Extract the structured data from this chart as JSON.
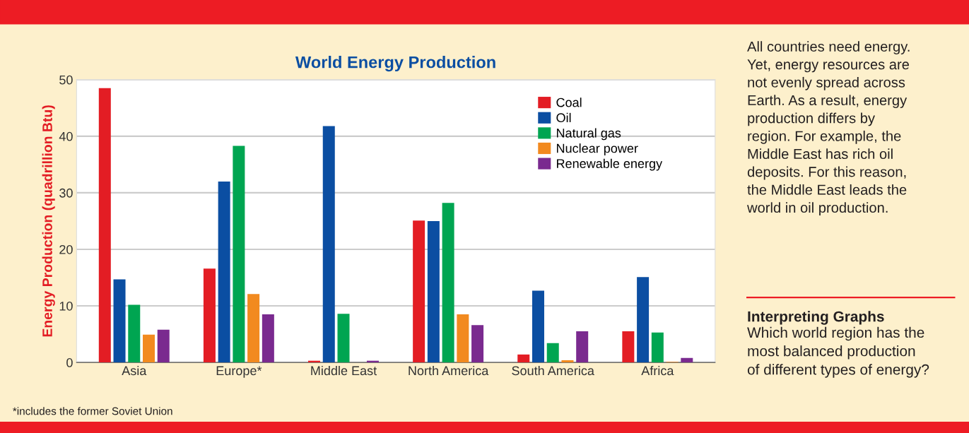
{
  "chart_data": {
    "type": "bar",
    "title": "World Energy Production",
    "ylabel": "Energy Production (quadrillion Btu)",
    "categories": [
      "Asia",
      "Europe*",
      "Middle East",
      "North America",
      "South America",
      "Africa"
    ],
    "series": [
      {
        "name": "Coal",
        "color": "#e31d24",
        "values": [
          48.5,
          16.6,
          0.3,
          25.1,
          1.4,
          5.5
        ]
      },
      {
        "name": "Oil",
        "color": "#0b4ea2",
        "values": [
          14.7,
          32.0,
          41.8,
          25.0,
          12.7,
          15.1
        ]
      },
      {
        "name": "Natural gas",
        "color": "#00a551",
        "values": [
          10.2,
          38.3,
          8.6,
          28.2,
          3.4,
          5.3
        ]
      },
      {
        "name": "Nuclear power",
        "color": "#f28a1f",
        "values": [
          4.9,
          12.1,
          0,
          8.5,
          0.4,
          0.1
        ]
      },
      {
        "name": "Renewable energy",
        "color": "#7a2a8f",
        "values": [
          5.8,
          8.5,
          0.3,
          6.6,
          5.5,
          0.8
        ]
      }
    ],
    "ylim": [
      0,
      50
    ],
    "yticks": [
      0,
      10,
      20,
      30,
      40,
      50
    ],
    "grid": "y",
    "legend": "top right",
    "annotations": [
      "*includes the former Soviet Union",
      "All countries need energy.\nYet, energy resources are\nnot evenly spread across\nEarth. As a result, energy\nproduction differs by\nregion. For example, the\nMiddle East has rich oil\ndeposits. For this reason,\nthe Middle East leads the\nworld in oil production.",
      "Interpreting Graphs",
      "Which world region has the\nmost balanced production\nof different types of energy?"
    ]
  }
}
